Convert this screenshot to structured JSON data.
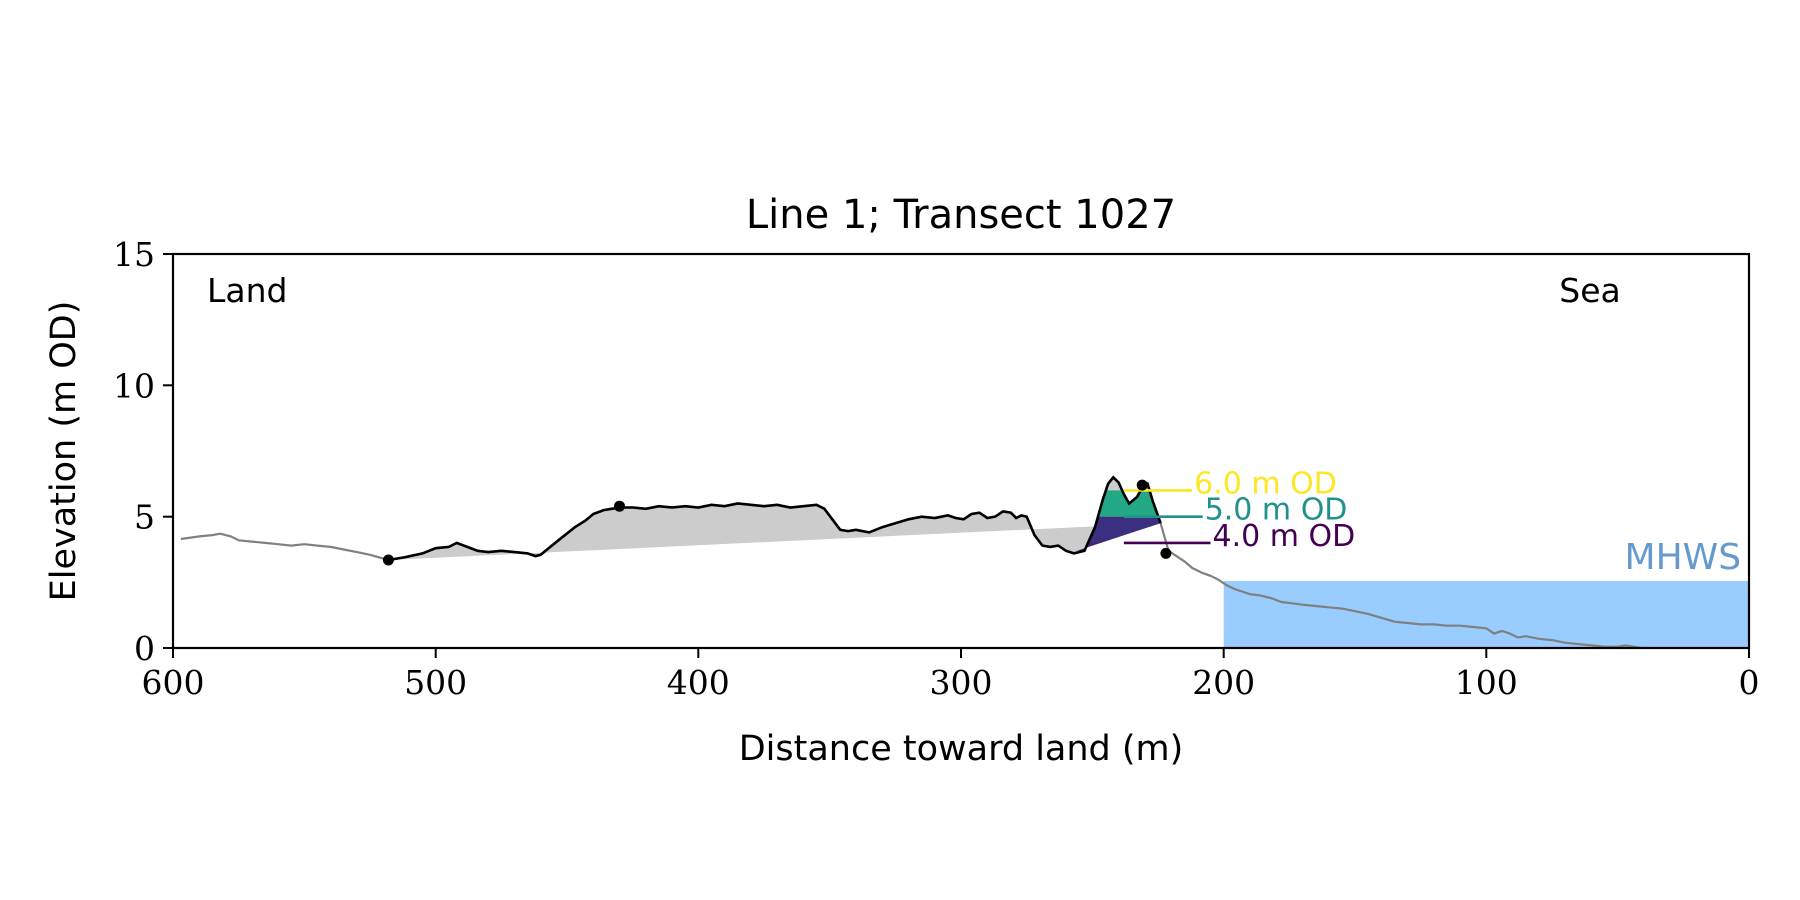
{
  "chart_data": {
    "type": "area",
    "title": "Line 1; Transect 1027",
    "xlabel": "Distance toward land (m)",
    "ylabel": "Elevation (m OD)",
    "xlim": [
      600,
      0
    ],
    "ylim": [
      0,
      15
    ],
    "x_reversed": true,
    "xticks": [
      600,
      500,
      400,
      300,
      200,
      100,
      0
    ],
    "yticks": [
      0,
      5,
      10,
      15
    ],
    "grid": false,
    "legend": "none",
    "annotations": {
      "land": "Land",
      "sea": "Sea",
      "mhws": "MHWS"
    },
    "mhws_level": 2.55,
    "profile": {
      "x": [
        597,
        590,
        585,
        582,
        578,
        575,
        570,
        565,
        560,
        555,
        550,
        545,
        540,
        535,
        530,
        525,
        518,
        512,
        505,
        500,
        495,
        492,
        488,
        484,
        480,
        475,
        470,
        465,
        462,
        460,
        457,
        452,
        447,
        443,
        440,
        436,
        433,
        430,
        425,
        420,
        415,
        410,
        405,
        400,
        395,
        390,
        385,
        380,
        375,
        370,
        365,
        360,
        355,
        352,
        349,
        346,
        343,
        340,
        335,
        330,
        325,
        320,
        315,
        310,
        305,
        302,
        299,
        296,
        293,
        290,
        287,
        284,
        281,
        279,
        277,
        275,
        272,
        269,
        266,
        263,
        260,
        257,
        253,
        249,
        246,
        244,
        242,
        240,
        238,
        236,
        233,
        231,
        229,
        227,
        224,
        221,
        218,
        215,
        212,
        208,
        205,
        202,
        199,
        196,
        193,
        190,
        186,
        182,
        178,
        174,
        170,
        165,
        160,
        155,
        150,
        145,
        140,
        135,
        130,
        125,
        120,
        115,
        110,
        105,
        100,
        97,
        94,
        91,
        88,
        85,
        80,
        75,
        70,
        65,
        60,
        55,
        50,
        47,
        44,
        41,
        38,
        35,
        32
      ],
      "y": [
        4.15,
        4.25,
        4.3,
        4.35,
        4.25,
        4.1,
        4.05,
        4.0,
        3.95,
        3.9,
        3.95,
        3.9,
        3.85,
        3.75,
        3.65,
        3.55,
        3.35,
        3.45,
        3.6,
        3.8,
        3.85,
        4.0,
        3.85,
        3.7,
        3.65,
        3.7,
        3.65,
        3.6,
        3.5,
        3.55,
        3.8,
        4.2,
        4.6,
        4.85,
        5.1,
        5.25,
        5.3,
        5.35,
        5.35,
        5.3,
        5.4,
        5.35,
        5.4,
        5.35,
        5.45,
        5.4,
        5.5,
        5.45,
        5.4,
        5.45,
        5.35,
        5.4,
        5.45,
        5.3,
        4.9,
        4.5,
        4.45,
        4.5,
        4.4,
        4.6,
        4.75,
        4.9,
        5.0,
        4.95,
        5.05,
        4.95,
        4.9,
        5.1,
        5.15,
        4.95,
        5.0,
        5.2,
        5.15,
        4.95,
        5.05,
        5.0,
        4.3,
        3.9,
        3.85,
        3.9,
        3.7,
        3.6,
        3.7,
        4.6,
        5.65,
        6.25,
        6.5,
        6.3,
        5.85,
        5.5,
        5.75,
        6.1,
        6.25,
        5.6,
        4.75,
        3.7,
        3.5,
        3.3,
        3.05,
        2.85,
        2.75,
        2.6,
        2.4,
        2.25,
        2.15,
        2.05,
        2.0,
        1.9,
        1.75,
        1.7,
        1.65,
        1.6,
        1.55,
        1.5,
        1.4,
        1.3,
        1.15,
        1.0,
        0.95,
        0.9,
        0.9,
        0.85,
        0.85,
        0.8,
        0.75,
        0.55,
        0.65,
        0.55,
        0.4,
        0.45,
        0.35,
        0.3,
        0.2,
        0.15,
        0.1,
        0.05,
        0.05,
        0.1,
        0.05,
        0.0,
        0.0,
        -0.05,
        -0.1
      ]
    },
    "segment_bounds": [
      518,
      222
    ],
    "breakpoints": [
      {
        "x": 518,
        "y": 3.35
      },
      {
        "x": 430,
        "y": 5.4
      },
      {
        "x": 231,
        "y": 6.2
      },
      {
        "x": 222,
        "y": 3.6
      }
    ],
    "levels": [
      {
        "label": "6.0 m OD",
        "value": 6.0,
        "color": "#fde725"
      },
      {
        "label": "5.0 m OD",
        "value": 5.0,
        "color": "#21918c"
      },
      {
        "label": "4.0 m OD",
        "value": 4.0,
        "color": "#440154"
      }
    ],
    "band_fills": [
      {
        "from": 5.0,
        "to": 6.0,
        "color": "#22a884"
      },
      {
        "from": 4.0,
        "to": 5.0,
        "color": "#3b2f7f"
      },
      {
        "from": 3.7,
        "to": 4.0,
        "color": "#482173"
      }
    ],
    "level_label_x": [
      212,
      208,
      205
    ],
    "colors": {
      "profile_outer": "#808080",
      "profile_segment": "#000000",
      "fill": "#cccccc",
      "mhws_fill": "#99ccff",
      "mhws_text": "#6699cc"
    }
  }
}
